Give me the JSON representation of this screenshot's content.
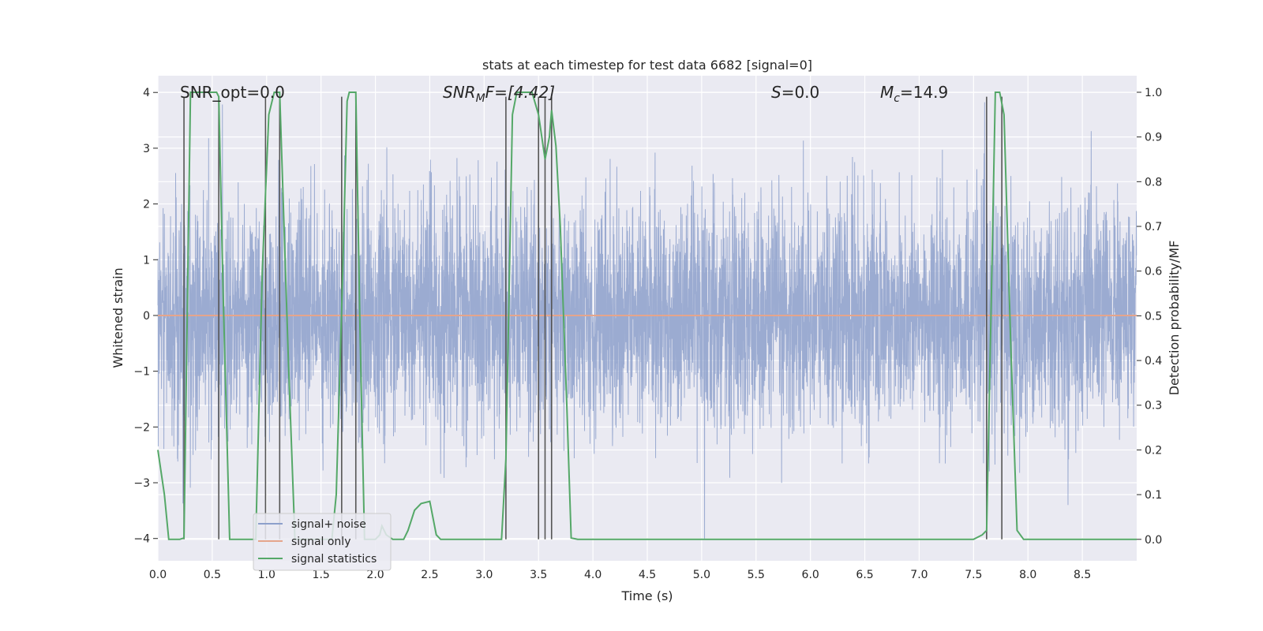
{
  "chart_data": {
    "type": "line",
    "title": "stats at each timestep for test data 6682 [signal=0]",
    "xlabel": "Time (s)",
    "ylabel": "Whitened strain",
    "y2label": "Detection probability/MF",
    "xlim": [
      0.0,
      9.0
    ],
    "ylim": [
      -4.4,
      4.3
    ],
    "y2lim": [
      -0.048,
      1.037
    ],
    "xticks": [
      "0.0",
      "0.5",
      "1.0",
      "1.5",
      "2.0",
      "2.5",
      "3.0",
      "3.5",
      "4.0",
      "4.5",
      "5.0",
      "5.5",
      "6.0",
      "6.5",
      "7.0",
      "7.5",
      "8.0",
      "8.5"
    ],
    "yticks": [
      "4",
      "3",
      "2",
      "1",
      "0",
      "−1",
      "−2",
      "−3",
      "−4"
    ],
    "y2ticks": [
      "1.0",
      "0.9",
      "0.8",
      "0.7",
      "0.6",
      "0.5",
      "0.4",
      "0.3",
      "0.2",
      "0.1",
      "0.0"
    ],
    "grid": true,
    "legend_position": "lower-left",
    "annotations": {
      "snr_opt": "SNR_opt=0.0",
      "snr_mf_sym": "SNR",
      "snr_mf_sub": "M",
      "snr_mf_rest": "F=[4.42]",
      "s_sym": "S",
      "s_rest": "=0.0",
      "mc_sym": "M",
      "mc_sub": "c",
      "mc_rest": "=14.9"
    },
    "noise": {
      "sample_rate": 600,
      "duration": 9.0,
      "std": 1.0,
      "clip": [
        -4.0,
        4.0
      ]
    },
    "series": [
      {
        "name": "signal+ noise",
        "color": "#8da0cb",
        "kind": "noise"
      },
      {
        "name": "signal only",
        "color": "#e5a58c",
        "kind": "flat",
        "y": 0.0
      },
      {
        "name": "signal statistics",
        "color": "#55a868",
        "kind": "line",
        "axis": "right",
        "x": [
          0.0,
          0.06,
          0.1,
          0.15,
          0.2,
          0.24,
          0.3,
          0.36,
          0.42,
          0.48,
          0.54,
          0.56,
          0.6,
          0.66,
          0.7,
          0.8,
          0.9,
          0.96,
          1.02,
          1.07,
          1.1,
          1.12,
          1.14,
          1.2,
          1.26,
          1.3,
          1.4,
          1.5,
          1.6,
          1.64,
          1.7,
          1.74,
          1.76,
          1.82,
          1.86,
          1.9,
          2.0,
          2.04,
          2.06,
          2.1,
          2.16,
          2.2,
          2.26,
          2.3,
          2.36,
          2.42,
          2.5,
          2.56,
          2.6,
          2.7,
          2.8,
          2.9,
          3.0,
          3.1,
          3.16,
          3.2,
          3.26,
          3.3,
          3.4,
          3.44,
          3.5,
          3.56,
          3.6,
          3.62,
          3.66,
          3.7,
          3.76,
          3.8,
          3.86,
          3.9,
          4.0,
          5.0,
          6.0,
          7.0,
          7.5,
          7.58,
          7.62,
          7.66,
          7.7,
          7.74,
          7.78,
          7.84,
          7.9,
          7.96,
          8.0,
          8.5,
          9.0
        ],
        "y": [
          0.2,
          0.1,
          0.0,
          0.0,
          0.0,
          0.003,
          1.0,
          1.0,
          1.0,
          1.0,
          1.0,
          0.99,
          0.55,
          0.0,
          0.0,
          0.0,
          0.0,
          0.6,
          0.95,
          1.0,
          1.0,
          1.0,
          0.85,
          0.4,
          0.0,
          0.0,
          0.0,
          0.0,
          0.0,
          0.1,
          0.6,
          0.98,
          1.0,
          1.0,
          0.45,
          0.0,
          0.0,
          0.01,
          0.03,
          0.01,
          0.0,
          0.0,
          0.0,
          0.02,
          0.065,
          0.08,
          0.085,
          0.01,
          0.0,
          0.0,
          0.0,
          0.0,
          0.0,
          0.0,
          0.0,
          0.18,
          0.95,
          1.0,
          1.0,
          1.0,
          0.95,
          0.85,
          0.9,
          0.96,
          0.88,
          0.7,
          0.3,
          0.003,
          0.0,
          0.0,
          0.0,
          0.0,
          0.0,
          0.0,
          0.0,
          0.01,
          0.02,
          0.5,
          1.0,
          1.0,
          0.95,
          0.45,
          0.02,
          0.0,
          0.0,
          0.0,
          0.0
        ]
      }
    ],
    "vlines": [
      0.24,
      0.56,
      0.99,
      1.12,
      1.69,
      1.82,
      3.2,
      3.5,
      3.56,
      3.62,
      7.62,
      7.76
    ]
  }
}
